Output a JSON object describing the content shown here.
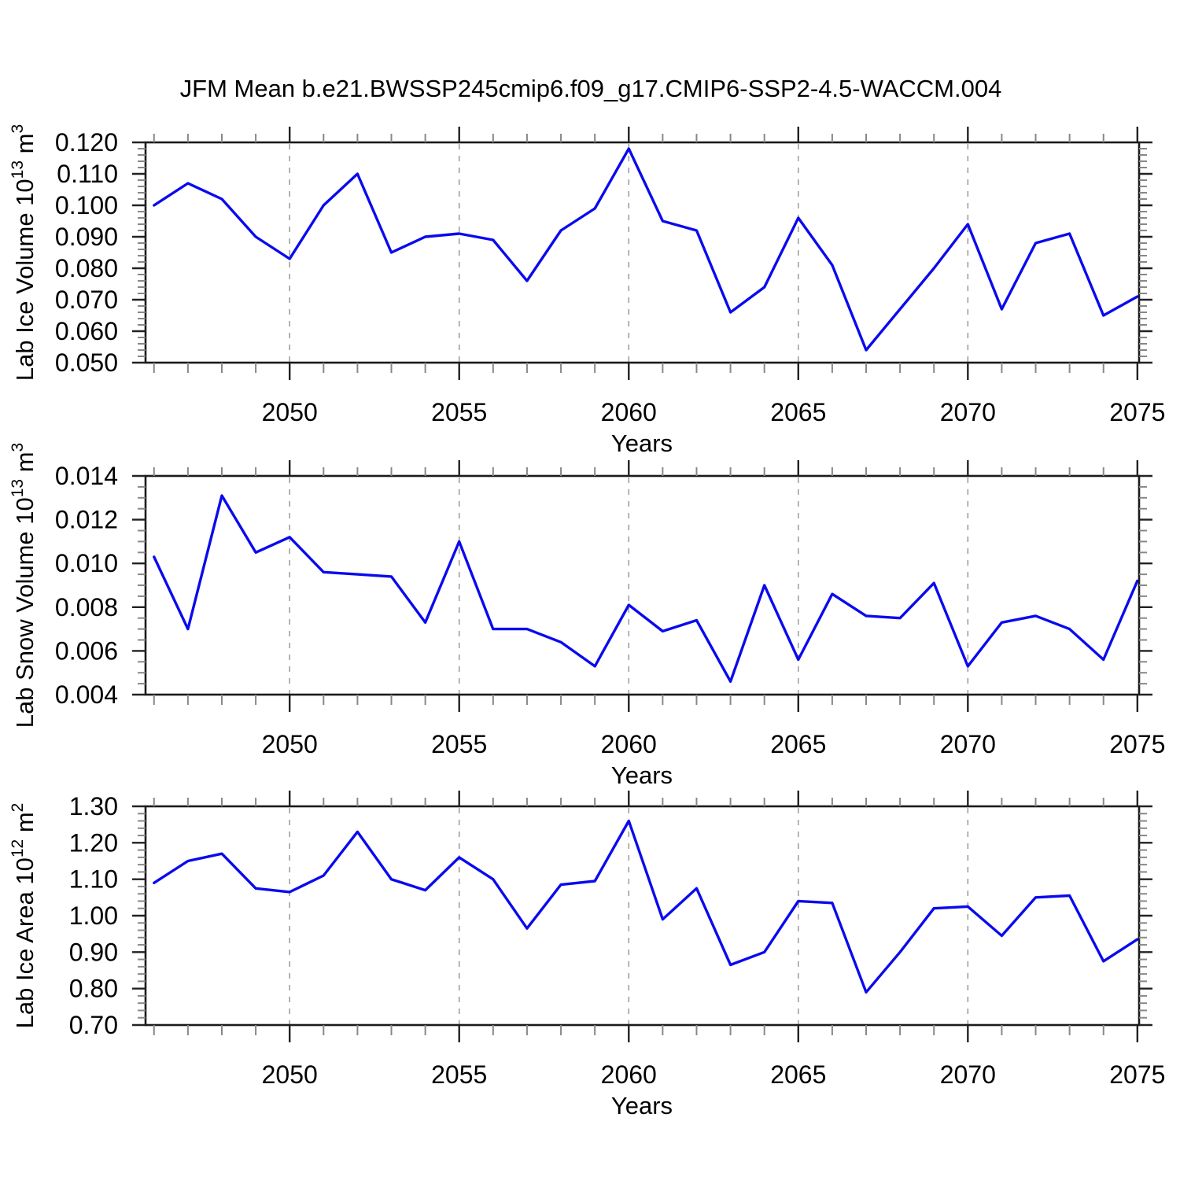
{
  "title": "JFM Mean b.e21.BWSSP245cmip6.f09_g17.CMIP6-SSP2-4.5-WACCM.004",
  "colors": {
    "line": "#0a0aee",
    "grid": "#a0a0a0",
    "frame": "#1a1a1a",
    "tick_major": "#222222",
    "tick_minor": "#888888",
    "text": "#000000",
    "background": "#ffffff"
  },
  "chart_data": [
    {
      "type": "line",
      "ylabel_parts": [
        [
          "Lab Ice Volume 10",
          0
        ],
        [
          "13",
          1
        ],
        [
          " m",
          0
        ],
        [
          "3",
          1
        ]
      ],
      "xlabel": "Years",
      "x_years": [
        2046,
        2047,
        2048,
        2049,
        2050,
        2051,
        2052,
        2053,
        2054,
        2055,
        2056,
        2057,
        2058,
        2059,
        2060,
        2061,
        2062,
        2063,
        2064,
        2065,
        2066,
        2067,
        2068,
        2069,
        2070,
        2071,
        2072,
        2073,
        2074,
        2075
      ],
      "values": [
        0.1,
        0.107,
        0.102,
        0.09,
        0.083,
        0.1,
        0.11,
        0.085,
        0.09,
        0.091,
        0.089,
        0.076,
        0.092,
        0.099,
        0.118,
        0.095,
        0.092,
        0.066,
        0.074,
        0.096,
        0.081,
        0.054,
        0.067,
        0.08,
        0.094,
        0.067,
        0.088,
        0.091,
        0.065,
        0.071
      ],
      "ylim": [
        0.05,
        0.12
      ],
      "yticks": [
        {
          "v": 0.05,
          "label": "0.050"
        },
        {
          "v": 0.06,
          "label": "0.060"
        },
        {
          "v": 0.07,
          "label": "0.070"
        },
        {
          "v": 0.08,
          "label": "0.080"
        },
        {
          "v": 0.09,
          "label": "0.090"
        },
        {
          "v": 0.1,
          "label": "0.100"
        },
        {
          "v": 0.11,
          "label": "0.110"
        },
        {
          "v": 0.12,
          "label": "0.120"
        }
      ],
      "yminor_step": 0.002,
      "xticks": [
        {
          "v": 2050,
          "label": "2050"
        },
        {
          "v": 2055,
          "label": "2055"
        },
        {
          "v": 2060,
          "label": "2060"
        },
        {
          "v": 2065,
          "label": "2065"
        },
        {
          "v": 2070,
          "label": "2070"
        },
        {
          "v": 2075,
          "label": "2075"
        }
      ],
      "xminor_step": 1,
      "grid_years": [
        2050,
        2055,
        2060,
        2065,
        2070
      ],
      "grid": "vertical-dashed"
    },
    {
      "type": "line",
      "ylabel_parts": [
        [
          "Lab Snow Volume 10",
          0
        ],
        [
          "13",
          1
        ],
        [
          " m",
          0
        ],
        [
          "3",
          1
        ]
      ],
      "xlabel": "Years",
      "x_years": [
        2046,
        2047,
        2048,
        2049,
        2050,
        2051,
        2052,
        2053,
        2054,
        2055,
        2056,
        2057,
        2058,
        2059,
        2060,
        2061,
        2062,
        2063,
        2064,
        2065,
        2066,
        2067,
        2068,
        2069,
        2070,
        2071,
        2072,
        2073,
        2074,
        2075
      ],
      "values": [
        0.0103,
        0.007,
        0.0131,
        0.0105,
        0.0112,
        0.0096,
        0.0095,
        0.0094,
        0.0073,
        0.011,
        0.007,
        0.007,
        0.0064,
        0.0053,
        0.0081,
        0.0069,
        0.0074,
        0.0046,
        0.009,
        0.0056,
        0.0086,
        0.0076,
        0.0075,
        0.0091,
        0.0053,
        0.0073,
        0.0076,
        0.007,
        0.0056,
        0.0092
      ],
      "ylim": [
        0.004,
        0.014
      ],
      "yticks": [
        {
          "v": 0.004,
          "label": "0.004"
        },
        {
          "v": 0.006,
          "label": "0.006"
        },
        {
          "v": 0.008,
          "label": "0.008"
        },
        {
          "v": 0.01,
          "label": "0.010"
        },
        {
          "v": 0.012,
          "label": "0.012"
        },
        {
          "v": 0.014,
          "label": "0.014"
        }
      ],
      "yminor_step": 0.0005,
      "xticks": [
        {
          "v": 2050,
          "label": "2050"
        },
        {
          "v": 2055,
          "label": "2055"
        },
        {
          "v": 2060,
          "label": "2060"
        },
        {
          "v": 2065,
          "label": "2065"
        },
        {
          "v": 2070,
          "label": "2070"
        },
        {
          "v": 2075,
          "label": "2075"
        }
      ],
      "xminor_step": 1,
      "grid_years": [
        2050,
        2055,
        2060,
        2065,
        2070
      ],
      "grid": "vertical-dashed"
    },
    {
      "type": "line",
      "ylabel_parts": [
        [
          "Lab Ice Area 10",
          0
        ],
        [
          "12",
          1
        ],
        [
          " m",
          0
        ],
        [
          "2",
          1
        ]
      ],
      "xlabel": "Years",
      "x_years": [
        2046,
        2047,
        2048,
        2049,
        2050,
        2051,
        2052,
        2053,
        2054,
        2055,
        2056,
        2057,
        2058,
        2059,
        2060,
        2061,
        2062,
        2063,
        2064,
        2065,
        2066,
        2067,
        2068,
        2069,
        2070,
        2071,
        2072,
        2073,
        2074,
        2075
      ],
      "values": [
        1.09,
        1.15,
        1.17,
        1.075,
        1.065,
        1.11,
        1.23,
        1.1,
        1.07,
        1.16,
        1.1,
        0.965,
        1.085,
        1.095,
        1.26,
        0.99,
        1.075,
        0.865,
        0.9,
        1.04,
        1.035,
        0.79,
        0.9,
        1.02,
        1.025,
        0.945,
        1.05,
        1.055,
        0.875,
        0.935
      ],
      "ylim": [
        0.7,
        1.3
      ],
      "yticks": [
        {
          "v": 0.7,
          "label": "0.70"
        },
        {
          "v": 0.8,
          "label": "0.80"
        },
        {
          "v": 0.9,
          "label": "0.90"
        },
        {
          "v": 1.0,
          "label": "1.00"
        },
        {
          "v": 1.1,
          "label": "1.10"
        },
        {
          "v": 1.2,
          "label": "1.20"
        },
        {
          "v": 1.3,
          "label": "1.30"
        }
      ],
      "yminor_step": 0.02,
      "xticks": [
        {
          "v": 2050,
          "label": "2050"
        },
        {
          "v": 2055,
          "label": "2055"
        },
        {
          "v": 2060,
          "label": "2060"
        },
        {
          "v": 2065,
          "label": "2065"
        },
        {
          "v": 2070,
          "label": "2070"
        },
        {
          "v": 2075,
          "label": "2075"
        }
      ],
      "xminor_step": 1,
      "grid_years": [
        2050,
        2055,
        2060,
        2065,
        2070
      ],
      "grid": "vertical-dashed"
    }
  ]
}
